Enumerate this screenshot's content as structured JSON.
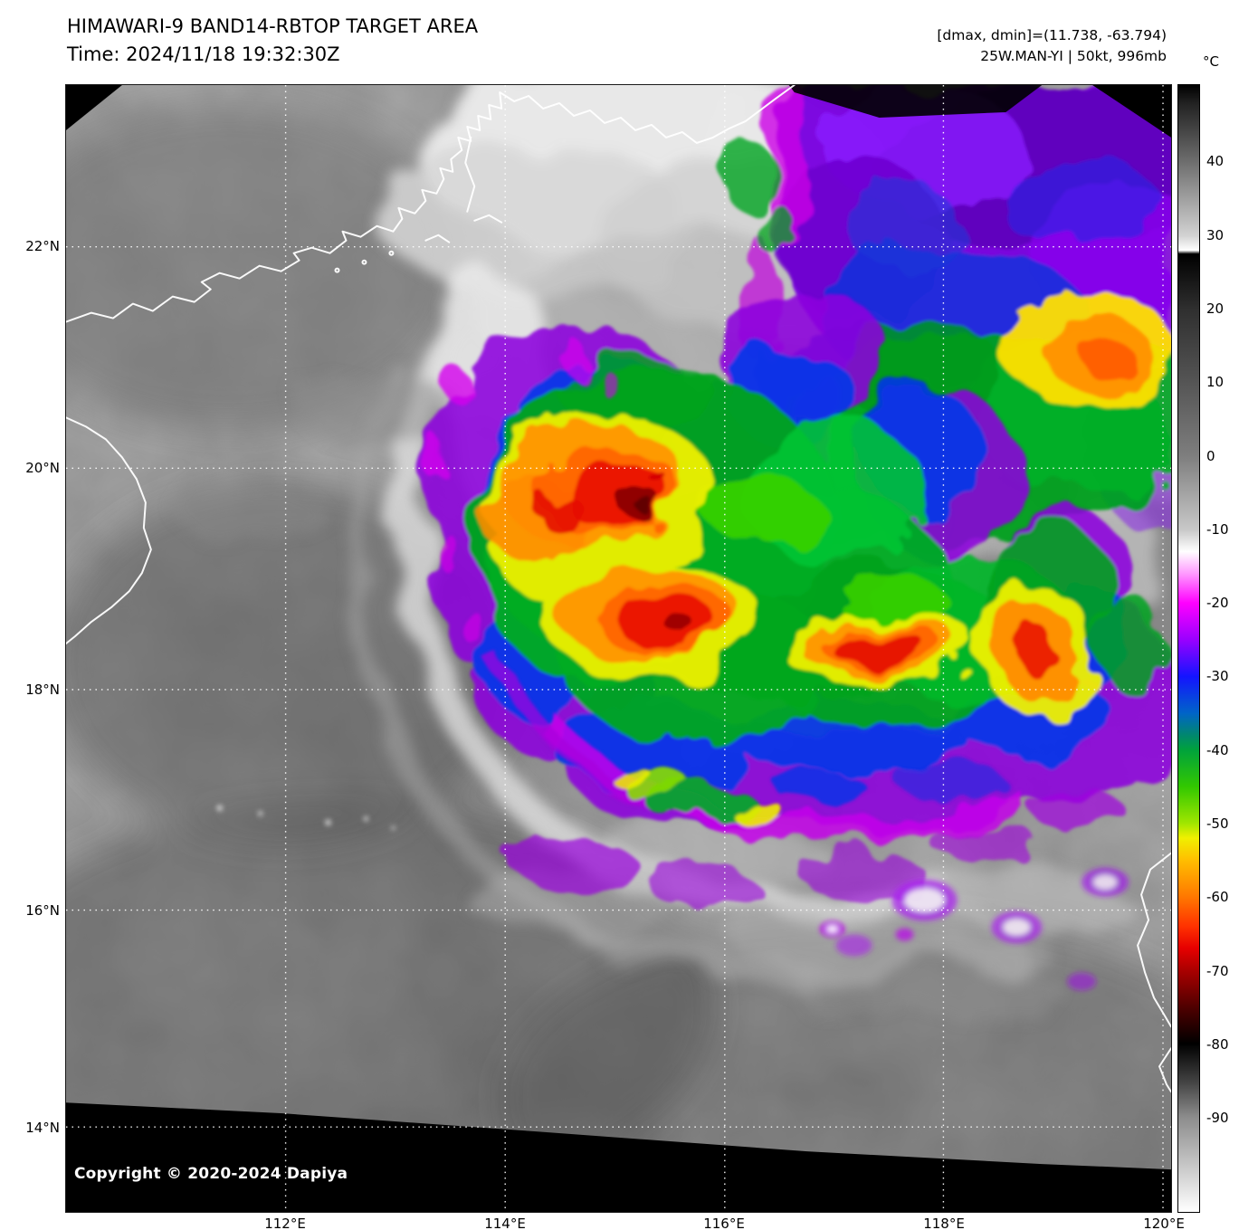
{
  "header": {
    "title": "HIMAWARI-9 BAND14-RBTOP TARGET AREA",
    "time": "Time: 2024/11/18 19:32:30Z",
    "dmax_dmin": "[dmax, dmin]=(11.738, -63.794)",
    "storm": "25W.MAN-YI | 50kt, 996mb"
  },
  "map": {
    "copyright": "Copyright © 2020-2024 Dapiya",
    "lat_labels": [
      "22°N",
      "20°N",
      "18°N",
      "16°N",
      "14°N"
    ],
    "lon_labels": [
      "112°E",
      "114°E",
      "116°E",
      "118°E",
      "120°E"
    ]
  },
  "colorbar": {
    "unit": "°C",
    "ticks": [
      40,
      30,
      20,
      10,
      0,
      -10,
      -20,
      -30,
      -40,
      -50,
      -60,
      -70,
      -80,
      -90
    ],
    "stops": [
      {
        "t": 50.5,
        "c": "#000000"
      },
      {
        "t": 49.3,
        "c": "#101010"
      },
      {
        "t": 48.0,
        "c": "#222222"
      },
      {
        "t": 40.0,
        "c": "#6e6e6e"
      },
      {
        "t": 30.0,
        "c": "#d2d2d2"
      },
      {
        "t": 28.0,
        "c": "#ffffff"
      },
      {
        "t": 27.5,
        "c": "#000000"
      },
      {
        "t": 20.0,
        "c": "#2f2f2f"
      },
      {
        "t": 10.0,
        "c": "#555555"
      },
      {
        "t": 0.0,
        "c": "#7e7e7e"
      },
      {
        "t": -10.0,
        "c": "#c8c8c8"
      },
      {
        "t": -13.0,
        "c": "#ffffff"
      },
      {
        "t": -16.0,
        "c": "#ff9aff"
      },
      {
        "t": -20.0,
        "c": "#ff00ff"
      },
      {
        "t": -25.0,
        "c": "#9900ff"
      },
      {
        "t": -30.0,
        "c": "#1414ff"
      },
      {
        "t": -35.0,
        "c": "#0064c8"
      },
      {
        "t": -38.0,
        "c": "#00876e"
      },
      {
        "t": -40.0,
        "c": "#00a23c"
      },
      {
        "t": -45.0,
        "c": "#32c800"
      },
      {
        "t": -50.0,
        "c": "#a0e600"
      },
      {
        "t": -52.0,
        "c": "#f0f000"
      },
      {
        "t": -55.0,
        "c": "#ffbe00"
      },
      {
        "t": -60.0,
        "c": "#ff7800"
      },
      {
        "t": -64.0,
        "c": "#ff3200"
      },
      {
        "t": -67.0,
        "c": "#e60000"
      },
      {
        "t": -70.0,
        "c": "#aa0000"
      },
      {
        "t": -75.0,
        "c": "#500000"
      },
      {
        "t": -80.0,
        "c": "#000000"
      },
      {
        "t": -85.0,
        "c": "#404040"
      },
      {
        "t": -90.0,
        "c": "#8c8c8c"
      },
      {
        "t": -102.9,
        "c": "#ffffff"
      }
    ]
  }
}
